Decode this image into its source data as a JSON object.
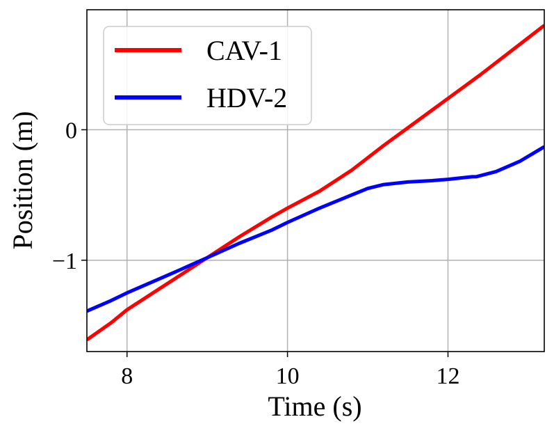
{
  "chart_data": {
    "type": "line",
    "title": "",
    "xlabel": "Time (s)",
    "ylabel": "Position (m)",
    "xlim": [
      7.5,
      13.2
    ],
    "ylim": [
      -1.7,
      0.92
    ],
    "xticks": [
      8,
      10,
      12
    ],
    "xtick_labels": [
      "8",
      "10",
      "12"
    ],
    "yticks": [
      -1,
      0
    ],
    "ytick_labels": [
      "−1",
      "0"
    ],
    "grid": true,
    "legend_position": "upper-left",
    "series": [
      {
        "name": "CAV-1",
        "color": "#ff0000",
        "x": [
          7.5,
          7.8,
          8.0,
          8.3,
          8.6,
          9.0,
          9.4,
          9.8,
          10.0,
          10.4,
          10.8,
          11.2,
          11.6,
          12.0,
          12.4,
          12.8,
          13.2
        ],
        "y": [
          -1.61,
          -1.48,
          -1.38,
          -1.26,
          -1.14,
          -0.98,
          -0.82,
          -0.67,
          -0.6,
          -0.47,
          -0.31,
          -0.12,
          0.06,
          0.24,
          0.42,
          0.61,
          0.8
        ]
      },
      {
        "name": "HDV-2",
        "color": "#0000ff",
        "x": [
          7.5,
          7.8,
          8.0,
          8.3,
          8.6,
          9.0,
          9.4,
          9.8,
          10.0,
          10.4,
          10.8,
          11.0,
          11.2,
          11.5,
          11.8,
          12.0,
          12.3,
          12.35,
          12.6,
          12.9,
          13.2
        ],
        "y": [
          -1.39,
          -1.31,
          -1.25,
          -1.17,
          -1.09,
          -0.98,
          -0.87,
          -0.77,
          -0.71,
          -0.6,
          -0.5,
          -0.45,
          -0.42,
          -0.4,
          -0.39,
          -0.38,
          -0.36,
          -0.36,
          -0.32,
          -0.24,
          -0.13
        ]
      }
    ]
  }
}
